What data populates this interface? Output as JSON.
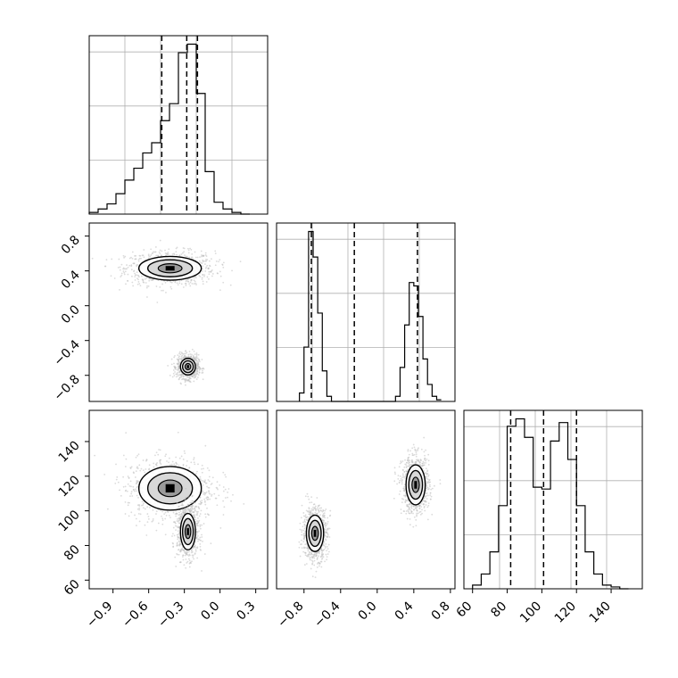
{
  "chart_data": [
    {
      "type": "histogram",
      "panel": "row1-col1",
      "xlim": [
        -1.1,
        0.4
      ],
      "quantile_lines": [
        -0.49,
        -0.28,
        -0.19
      ],
      "bins": [
        -1.1,
        -1.025,
        -0.95,
        -0.875,
        -0.8,
        -0.725,
        -0.65,
        -0.575,
        -0.5,
        -0.425,
        -0.35,
        -0.275,
        -0.2,
        -0.125,
        -0.05,
        0.025,
        0.1,
        0.175,
        0.25
      ],
      "counts": [
        1,
        3,
        6,
        12,
        20,
        27,
        36,
        42,
        55,
        65,
        95,
        100,
        71,
        25,
        7,
        3,
        1,
        0
      ],
      "grid": true
    },
    {
      "type": "scatter_density",
      "panel": "row2-col1",
      "xlim": [
        -1.1,
        0.4
      ],
      "ylim": [
        -1.1,
        0.95
      ],
      "y_ticks": [
        "0.8",
        "0.4",
        "0.0",
        "−0.4",
        "−0.8"
      ],
      "clusters": [
        {
          "center_x": -0.42,
          "center_y": 0.43,
          "spread_x": 0.25,
          "spread_y": 0.13
        },
        {
          "center_x": -0.27,
          "center_y": -0.7,
          "spread_x": 0.06,
          "spread_y": 0.09
        }
      ]
    },
    {
      "type": "histogram",
      "panel": "row2-col2",
      "xlim": [
        -1.1,
        0.85
      ],
      "quantile_lines": [
        -0.72,
        -0.25,
        0.44
      ],
      "bins": [
        -0.85,
        -0.8,
        -0.75,
        -0.7,
        -0.65,
        -0.6,
        -0.55,
        -0.5,
        -0.45,
        -0.4,
        -0.35,
        -0.3,
        -0.25,
        -0.2,
        -0.15,
        -0.1,
        -0.05,
        0.0,
        0.05,
        0.1,
        0.15,
        0.2,
        0.25,
        0.3,
        0.35,
        0.4,
        0.45,
        0.5,
        0.55,
        0.6,
        0.65,
        0.7
      ],
      "counts": [
        5,
        32,
        100,
        85,
        52,
        18,
        3,
        0,
        0,
        0,
        0,
        0,
        0,
        0,
        0,
        0,
        0,
        0,
        0,
        0,
        0,
        3,
        20,
        45,
        70,
        68,
        50,
        25,
        10,
        3,
        1
      ],
      "grid": true
    },
    {
      "type": "scatter_density",
      "panel": "row3-col1",
      "xlim": [
        -1.1,
        0.4
      ],
      "ylim": [
        55,
        158
      ],
      "x_ticks": [
        "−0.9",
        "−0.6",
        "−0.3",
        "0.0",
        "0.3"
      ],
      "y_ticks": [
        "140",
        "120",
        "100",
        "80",
        "60"
      ],
      "clusters": [
        {
          "center_x": -0.42,
          "center_y": 113,
          "spread_x": 0.25,
          "spread_y": 12
        },
        {
          "center_x": -0.27,
          "center_y": 88,
          "spread_x": 0.06,
          "spread_y": 10
        }
      ]
    },
    {
      "type": "scatter_density",
      "panel": "row3-col2",
      "xlim": [
        -1.1,
        0.85
      ],
      "ylim": [
        55,
        158
      ],
      "x_ticks": [
        "−0.8",
        "−0.4",
        "0.0",
        "0.4",
        "0.8"
      ],
      "clusters": [
        {
          "center_x": -0.68,
          "center_y": 87,
          "spread_x": 0.09,
          "spread_y": 10
        },
        {
          "center_x": 0.42,
          "center_y": 115,
          "spread_x": 0.1,
          "spread_y": 11
        }
      ]
    },
    {
      "type": "histogram",
      "panel": "row3-col3",
      "xlim": [
        55,
        158
      ],
      "x_ticks": [
        "60",
        "80",
        "100",
        "120",
        "140"
      ],
      "quantile_lines": [
        82,
        101,
        120
      ],
      "bins": [
        60,
        65,
        70,
        75,
        80,
        85,
        90,
        95,
        100,
        105,
        110,
        115,
        120,
        125,
        130,
        135,
        140,
        145,
        150
      ],
      "counts": [
        2,
        8,
        20,
        45,
        88,
        92,
        82,
        55,
        54,
        80,
        90,
        70,
        45,
        20,
        8,
        2,
        1,
        0
      ],
      "grid": true
    }
  ],
  "colors": {
    "line": "#000000",
    "grid": "#b0b0b0",
    "points": "#bdbdbd"
  },
  "sections": {
    "label": "corner plot"
  }
}
